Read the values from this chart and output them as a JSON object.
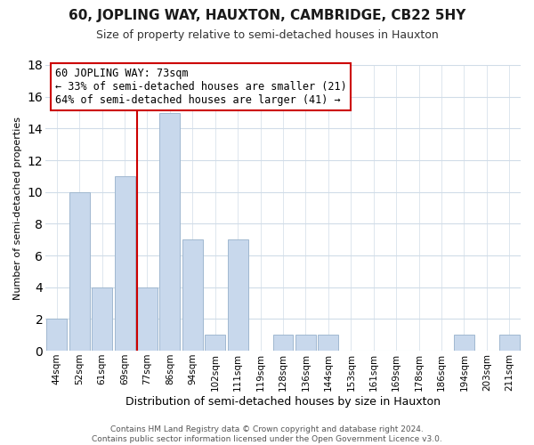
{
  "title": "60, JOPLING WAY, HAUXTON, CAMBRIDGE, CB22 5HY",
  "subtitle": "Size of property relative to semi-detached houses in Hauxton",
  "xlabel": "Distribution of semi-detached houses by size in Hauxton",
  "ylabel": "Number of semi-detached properties",
  "bin_labels": [
    "44sqm",
    "52sqm",
    "61sqm",
    "69sqm",
    "77sqm",
    "86sqm",
    "94sqm",
    "102sqm",
    "111sqm",
    "119sqm",
    "128sqm",
    "136sqm",
    "144sqm",
    "153sqm",
    "161sqm",
    "169sqm",
    "178sqm",
    "186sqm",
    "194sqm",
    "203sqm",
    "211sqm"
  ],
  "bar_values": [
    2,
    10,
    4,
    11,
    4,
    15,
    7,
    1,
    7,
    0,
    1,
    1,
    1,
    0,
    0,
    0,
    0,
    0,
    1,
    0,
    1
  ],
  "highlight_bar_index": 4,
  "bar_color": "#c8d8ec",
  "bar_edge_color": "#a0b8d0",
  "highlight_edge_color": "#cc0000",
  "annotation_text": "60 JOPLING WAY: 73sqm\n← 33% of semi-detached houses are smaller (21)\n64% of semi-detached houses are larger (41) →",
  "annotation_box_color": "white",
  "annotation_box_edge_color": "#cc0000",
  "ylim": [
    0,
    18
  ],
  "yticks": [
    0,
    2,
    4,
    6,
    8,
    10,
    12,
    14,
    16,
    18
  ],
  "footer_text": "Contains HM Land Registry data © Crown copyright and database right 2024.\nContains public sector information licensed under the Open Government Licence v3.0.",
  "grid_color": "#d0dce8",
  "background_color": "#ffffff",
  "title_fontsize": 11,
  "subtitle_fontsize": 9,
  "ylabel_fontsize": 8,
  "xlabel_fontsize": 9,
  "tick_fontsize": 7.5,
  "annotation_fontsize": 8.5,
  "footer_fontsize": 6.5
}
